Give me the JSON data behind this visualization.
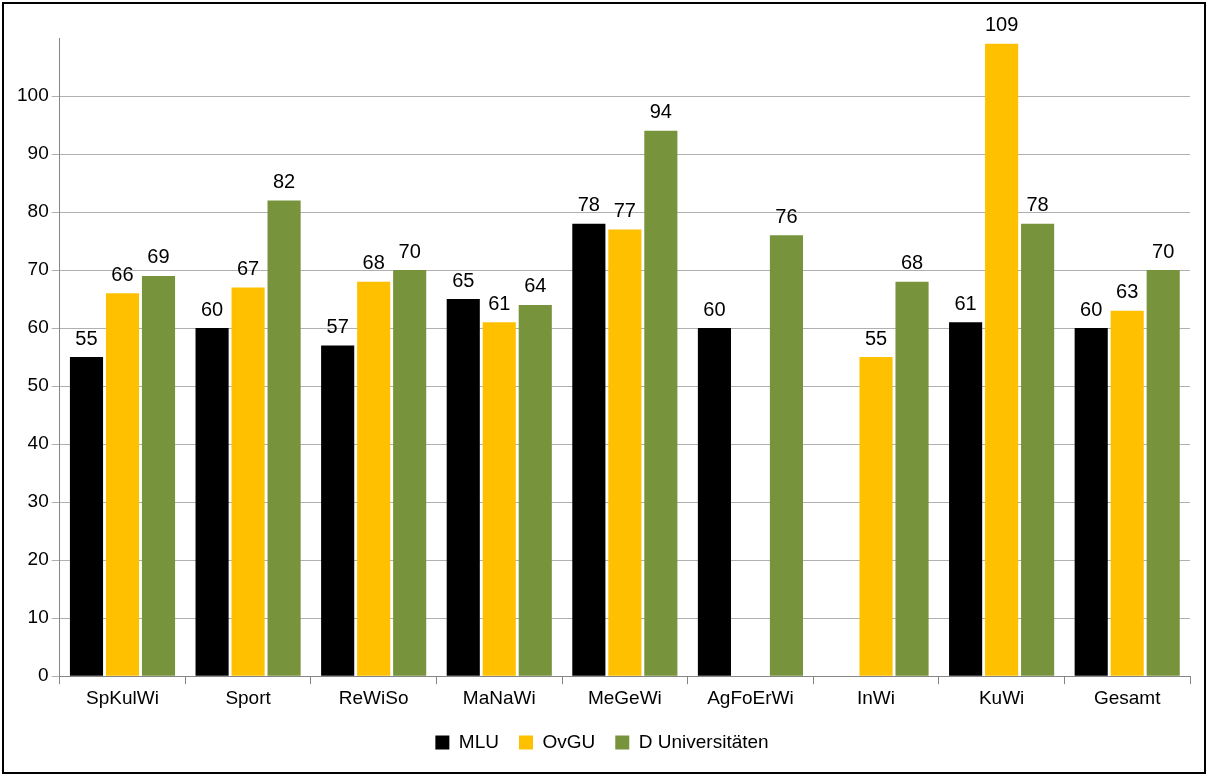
{
  "chart_data": {
    "type": "bar",
    "categories": [
      "SpKulWi",
      "Sport",
      "ReWiSo",
      "MaNaWi",
      "MeGeWi",
      "AgFoErWi",
      "InWi",
      "KuWi",
      "Gesamt"
    ],
    "series": [
      {
        "name": "MLU",
        "color": "#000000",
        "values": [
          55,
          60,
          57,
          65,
          78,
          60,
          null,
          61,
          60
        ]
      },
      {
        "name": "OvGU",
        "color": "#ffc000",
        "values": [
          66,
          67,
          68,
          61,
          77,
          null,
          55,
          109,
          63
        ]
      },
      {
        "name": "D Universitäten",
        "color": "#77933c",
        "values": [
          69,
          82,
          70,
          64,
          94,
          76,
          68,
          78,
          70
        ]
      }
    ],
    "ylim": [
      0,
      110
    ],
    "yticks": [
      0,
      10,
      20,
      30,
      40,
      50,
      60,
      70,
      80,
      90,
      100
    ],
    "grid": "y",
    "legend": "bottom",
    "data_labels": true
  }
}
